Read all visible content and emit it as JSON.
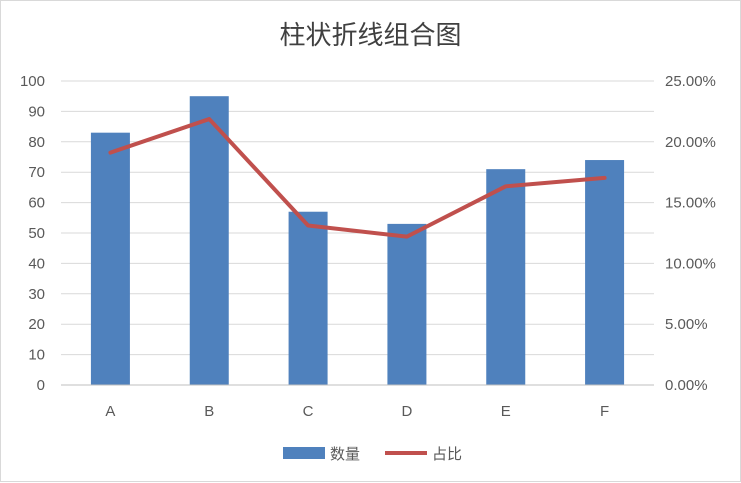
{
  "chart_data": {
    "type": "bar",
    "title": "柱状折线组合图",
    "categories": [
      "A",
      "B",
      "C",
      "D",
      "E",
      "F"
    ],
    "series": [
      {
        "name": "数量",
        "type": "bar",
        "axis": "left",
        "values": [
          83,
          95,
          57,
          53,
          71,
          74
        ],
        "color": "#4f81bd"
      },
      {
        "name": "占比",
        "type": "line",
        "axis": "right",
        "values": [
          0.1911,
          0.2187,
          0.1312,
          0.122,
          0.1634,
          0.1703
        ],
        "color": "#c0504d"
      }
    ],
    "y_left": {
      "min": 0,
      "max": 100,
      "step": 10,
      "ticks": [
        "0",
        "10",
        "20",
        "30",
        "40",
        "50",
        "60",
        "70",
        "80",
        "90",
        "100"
      ]
    },
    "y_right": {
      "min": 0,
      "max": 0.25,
      "step": 0.05,
      "ticks": [
        "0.00%",
        "5.00%",
        "10.00%",
        "15.00%",
        "20.00%",
        "25.00%"
      ]
    },
    "grid": true,
    "legend_position": "bottom"
  }
}
